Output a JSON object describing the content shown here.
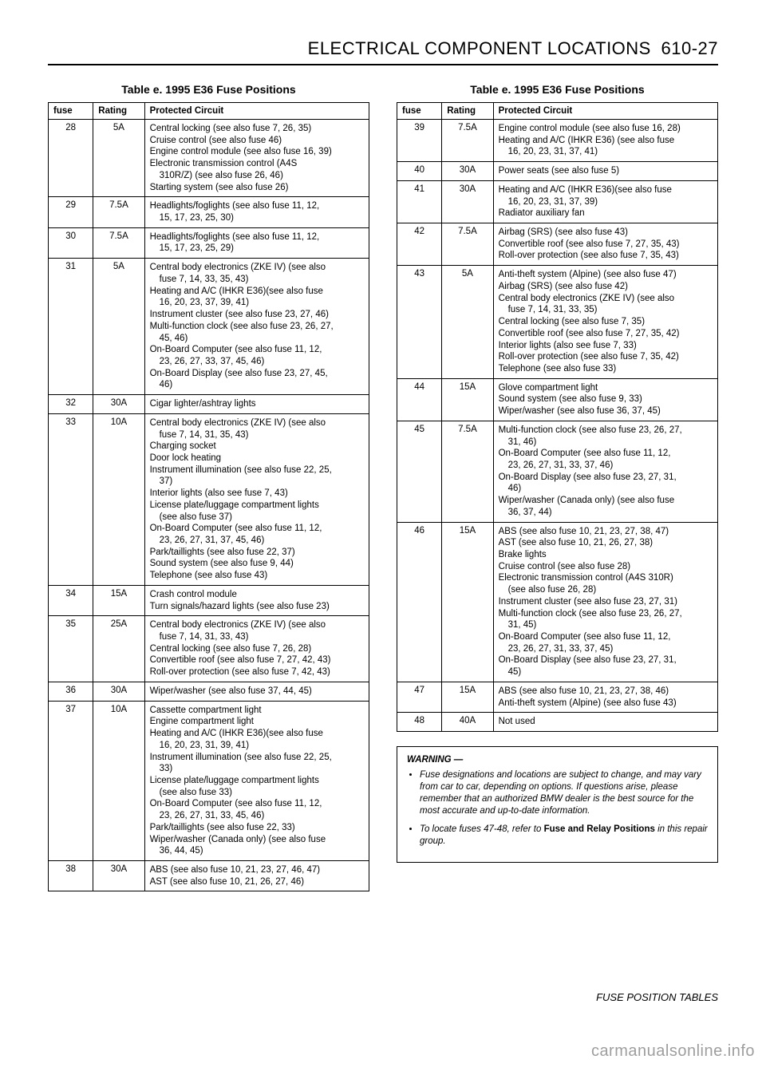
{
  "header": {
    "title_caps": "ELECTRICAL COMPONENT LOCATIONS",
    "page_ref": "610-27"
  },
  "footer": "FUSE POSITION TABLES",
  "watermark": "carmanualsonline.info",
  "table_caption": "Table e.  1995 E36 Fuse Positions",
  "columns": {
    "fuse": "fuse",
    "rating": "Rating",
    "circuit": "Protected Circuit"
  },
  "left_rows": [
    {
      "fuse": "28",
      "rating": "5A",
      "lines": [
        "Central locking (see also fuse 7, 26, 35)",
        "Cruise control (see also fuse 46)",
        "Engine control module (see also fuse 16, 39)",
        "Electronic transmission control (A4S",
        {
          "indent": true,
          "text": "310R/Z) (see also fuse 26, 46)"
        },
        "Starting system (see also fuse 26)"
      ]
    },
    {
      "fuse": "29",
      "rating": "7.5A",
      "lines": [
        "Headlights/foglights (see also fuse 11, 12,",
        {
          "indent": true,
          "text": "15, 17, 23, 25, 30)"
        }
      ]
    },
    {
      "fuse": "30",
      "rating": "7.5A",
      "lines": [
        "Headlights/foglights (see also fuse 11, 12,",
        {
          "indent": true,
          "text": "15, 17, 23, 25, 29)"
        }
      ]
    },
    {
      "fuse": "31",
      "rating": "5A",
      "lines": [
        "Central body electronics (ZKE IV) (see also",
        {
          "indent": true,
          "text": "fuse 7, 14, 33, 35, 43)"
        },
        "Heating and A/C (IHKR E36)(see also fuse",
        {
          "indent": true,
          "text": "16, 20, 23, 37, 39, 41)"
        },
        "Instrument cluster (see also fuse 23, 27, 46)",
        "Multi-function clock (see also fuse 23, 26, 27,",
        {
          "indent": true,
          "text": "45, 46)"
        },
        "On-Board Computer (see also fuse 11, 12,",
        {
          "indent": true,
          "text": "23, 26, 27, 33, 37, 45, 46)"
        },
        "On-Board Display (see also fuse 23, 27, 45,",
        {
          "indent": true,
          "text": "46)"
        }
      ]
    },
    {
      "fuse": "32",
      "rating": "30A",
      "lines": [
        "Cigar lighter/ashtray lights"
      ]
    },
    {
      "fuse": "33",
      "rating": "10A",
      "lines": [
        "Central body electronics (ZKE IV) (see also",
        {
          "indent": true,
          "text": "fuse 7, 14, 31, 35, 43)"
        },
        "Charging socket",
        "Door lock heating",
        "Instrument illumination (see also fuse 22, 25,",
        {
          "indent": true,
          "text": "37)"
        },
        "Interior lights (also see fuse 7, 43)",
        "License plate/luggage compartment lights",
        {
          "indent": true,
          "text": "(see also fuse 37)"
        },
        "On-Board Computer (see also fuse 11, 12,",
        {
          "indent": true,
          "text": "23, 26, 27, 31, 37, 45, 46)"
        },
        "Park/taillights (see also fuse 22, 37)",
        "Sound system (see also fuse 9, 44)",
        "Telephone (see also fuse 43)"
      ]
    },
    {
      "fuse": "34",
      "rating": "15A",
      "lines": [
        "Crash control module",
        "Turn signals/hazard lights (see also fuse 23)"
      ]
    },
    {
      "fuse": "35",
      "rating": "25A",
      "lines": [
        "Central body electronics (ZKE IV) (see also",
        {
          "indent": true,
          "text": "fuse 7, 14, 31, 33, 43)"
        },
        "Central locking (see also fuse 7, 26, 28)",
        "Convertible roof (see also fuse 7, 27, 42, 43)",
        "Roll-over protection (see also fuse 7, 42, 43)"
      ]
    },
    {
      "fuse": "36",
      "rating": "30A",
      "lines": [
        "Wiper/washer (see also fuse 37, 44, 45)"
      ]
    },
    {
      "fuse": "37",
      "rating": "10A",
      "lines": [
        "Cassette compartment light",
        "Engine compartment light",
        "Heating and A/C (IHKR E36)(see also fuse",
        {
          "indent": true,
          "text": "16, 20, 23, 31, 39, 41)"
        },
        "Instrument illumination (see also fuse 22, 25,",
        {
          "indent": true,
          "text": "33)"
        },
        "License plate/luggage compartment lights",
        {
          "indent": true,
          "text": "(see also fuse 33)"
        },
        "On-Board Computer (see also fuse 11, 12,",
        {
          "indent": true,
          "text": "23, 26, 27, 31, 33, 45, 46)"
        },
        "Park/taillights (see also fuse 22, 33)",
        "Wiper/washer (Canada only) (see also fuse",
        {
          "indent": true,
          "text": "36, 44, 45)"
        }
      ]
    },
    {
      "fuse": "38",
      "rating": "30A",
      "lines": [
        "ABS (see also fuse 10, 21, 23, 27, 46, 47)",
        "AST (see also fuse 10, 21, 26, 27, 46)"
      ]
    }
  ],
  "right_rows": [
    {
      "fuse": "39",
      "rating": "7.5A",
      "lines": [
        "Engine control module (see also fuse 16, 28)",
        "Heating and A/C (IHKR E36) (see also fuse",
        {
          "indent": true,
          "text": "16, 20, 23, 31, 37, 41)"
        }
      ]
    },
    {
      "fuse": "40",
      "rating": "30A",
      "lines": [
        "Power seats (see also fuse 5)"
      ]
    },
    {
      "fuse": "41",
      "rating": "30A",
      "lines": [
        "Heating and A/C (IHKR E36)(see also fuse",
        {
          "indent": true,
          "text": "16, 20, 23, 31, 37, 39)"
        },
        "Radiator auxiliary fan"
      ]
    },
    {
      "fuse": "42",
      "rating": "7.5A",
      "lines": [
        "Airbag (SRS) (see also fuse 43)",
        "Convertible roof (see also fuse 7, 27, 35, 43)",
        "Roll-over protection (see also fuse 7, 35, 43)"
      ]
    },
    {
      "fuse": "43",
      "rating": "5A",
      "lines": [
        "Anti-theft system (Alpine) (see also fuse 47)",
        "Airbag (SRS) (see also fuse 42)",
        "Central body electronics (ZKE IV) (see also",
        {
          "indent": true,
          "text": "fuse 7, 14, 31, 33, 35)"
        },
        "Central locking (see also fuse 7, 35)",
        "Convertible roof (see also fuse 7, 27, 35, 42)",
        "Interior lights (also see fuse 7, 33)",
        "Roll-over protection (see also fuse 7, 35, 42)",
        "Telephone (see also fuse 33)"
      ]
    },
    {
      "fuse": "44",
      "rating": "15A",
      "lines": [
        "Glove compartment light",
        "Sound system (see also fuse 9, 33)",
        "Wiper/washer (see also fuse 36, 37, 45)"
      ]
    },
    {
      "fuse": "45",
      "rating": "7.5A",
      "lines": [
        "Multi-function clock (see also fuse 23, 26, 27,",
        {
          "indent": true,
          "text": "31, 46)"
        },
        "On-Board Computer (see also fuse 11, 12,",
        {
          "indent": true,
          "text": "23, 26, 27, 31, 33, 37, 46)"
        },
        "On-Board Display (see also fuse 23, 27, 31,",
        {
          "indent": true,
          "text": "46)"
        },
        "Wiper/washer (Canada only) (see also fuse",
        {
          "indent": true,
          "text": "36, 37, 44)"
        }
      ]
    },
    {
      "fuse": "46",
      "rating": "15A",
      "lines": [
        "ABS (see also fuse 10, 21, 23, 27, 38, 47)",
        "AST (see also fuse 10, 21, 26, 27, 38)",
        "Brake lights",
        "Cruise control (see also fuse 28)",
        "Electronic transmission control (A4S 310R)",
        {
          "indent": true,
          "text": "(see also fuse 26, 28)"
        },
        "Instrument cluster (see also fuse 23, 27, 31)",
        "Multi-function clock (see also fuse 23, 26, 27,",
        {
          "indent": true,
          "text": "31, 45)"
        },
        "On-Board Computer (see also fuse 11, 12,",
        {
          "indent": true,
          "text": "23, 26, 27, 31, 33, 37, 45)"
        },
        "On-Board Display (see also fuse 23, 27, 31,",
        {
          "indent": true,
          "text": "45)"
        }
      ]
    },
    {
      "fuse": "47",
      "rating": "15A",
      "lines": [
        "ABS (see also fuse 10, 21, 23, 27, 38, 46)",
        "Anti-theft system (Alpine) (see also fuse 43)"
      ]
    },
    {
      "fuse": "48",
      "rating": "40A",
      "lines": [
        "Not used"
      ]
    }
  ],
  "warning": {
    "title": "WARNING —",
    "items": [
      {
        "text": "Fuse designations and locations are subject to change, and may vary from car to car, depending on options. If questions arise, please remember that an authorized BMW dealer is the best source for the most accurate and up-to-date information."
      },
      {
        "prefix": "To locate fuses 47-48, refer to ",
        "bold": "Fuse and Relay Positions",
        "suffix": " in this repair group."
      }
    ]
  }
}
